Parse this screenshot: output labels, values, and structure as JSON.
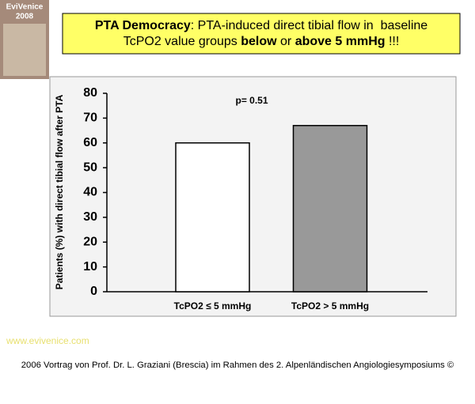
{
  "chart_data": {
    "type": "bar",
    "title": [
      [
        {
          "text": "PTA Democracy",
          "bold": true
        },
        {
          "text": ": PTA-induced direct tibial flow in  baseline",
          "bold": false
        }
      ],
      [
        {
          "text": "TcPO2 value groups ",
          "bold": false
        },
        {
          "text": "below",
          "bold": true
        },
        {
          "text": " or ",
          "bold": false
        },
        {
          "text": "above 5 mmHg",
          "bold": true
        },
        {
          "text": " !!!",
          "bold": false
        }
      ]
    ],
    "y_label": "Patients (%) with direct tibial flow after PTA",
    "annotation": "p= 0.51",
    "categories": [
      "TcPO2 ≤ 5 mmHg",
      "TcPO2 > 5 mmHg"
    ],
    "values": [
      60,
      67
    ],
    "colors": [
      "#ffffff",
      "#999999"
    ],
    "ylim": [
      0,
      80
    ],
    "yticks": [
      0,
      10,
      20,
      30,
      40,
      50,
      60,
      70,
      80
    ],
    "grid": false
  },
  "logo": [
    "EviVenice",
    "2008"
  ],
  "website": "www.evivenice.com",
  "caption": "2006 Vortrag von Prof. Dr. L. Graziani (Brescia) im Rahmen des 2. Alpenländischen Angiologiesymposiums ©"
}
